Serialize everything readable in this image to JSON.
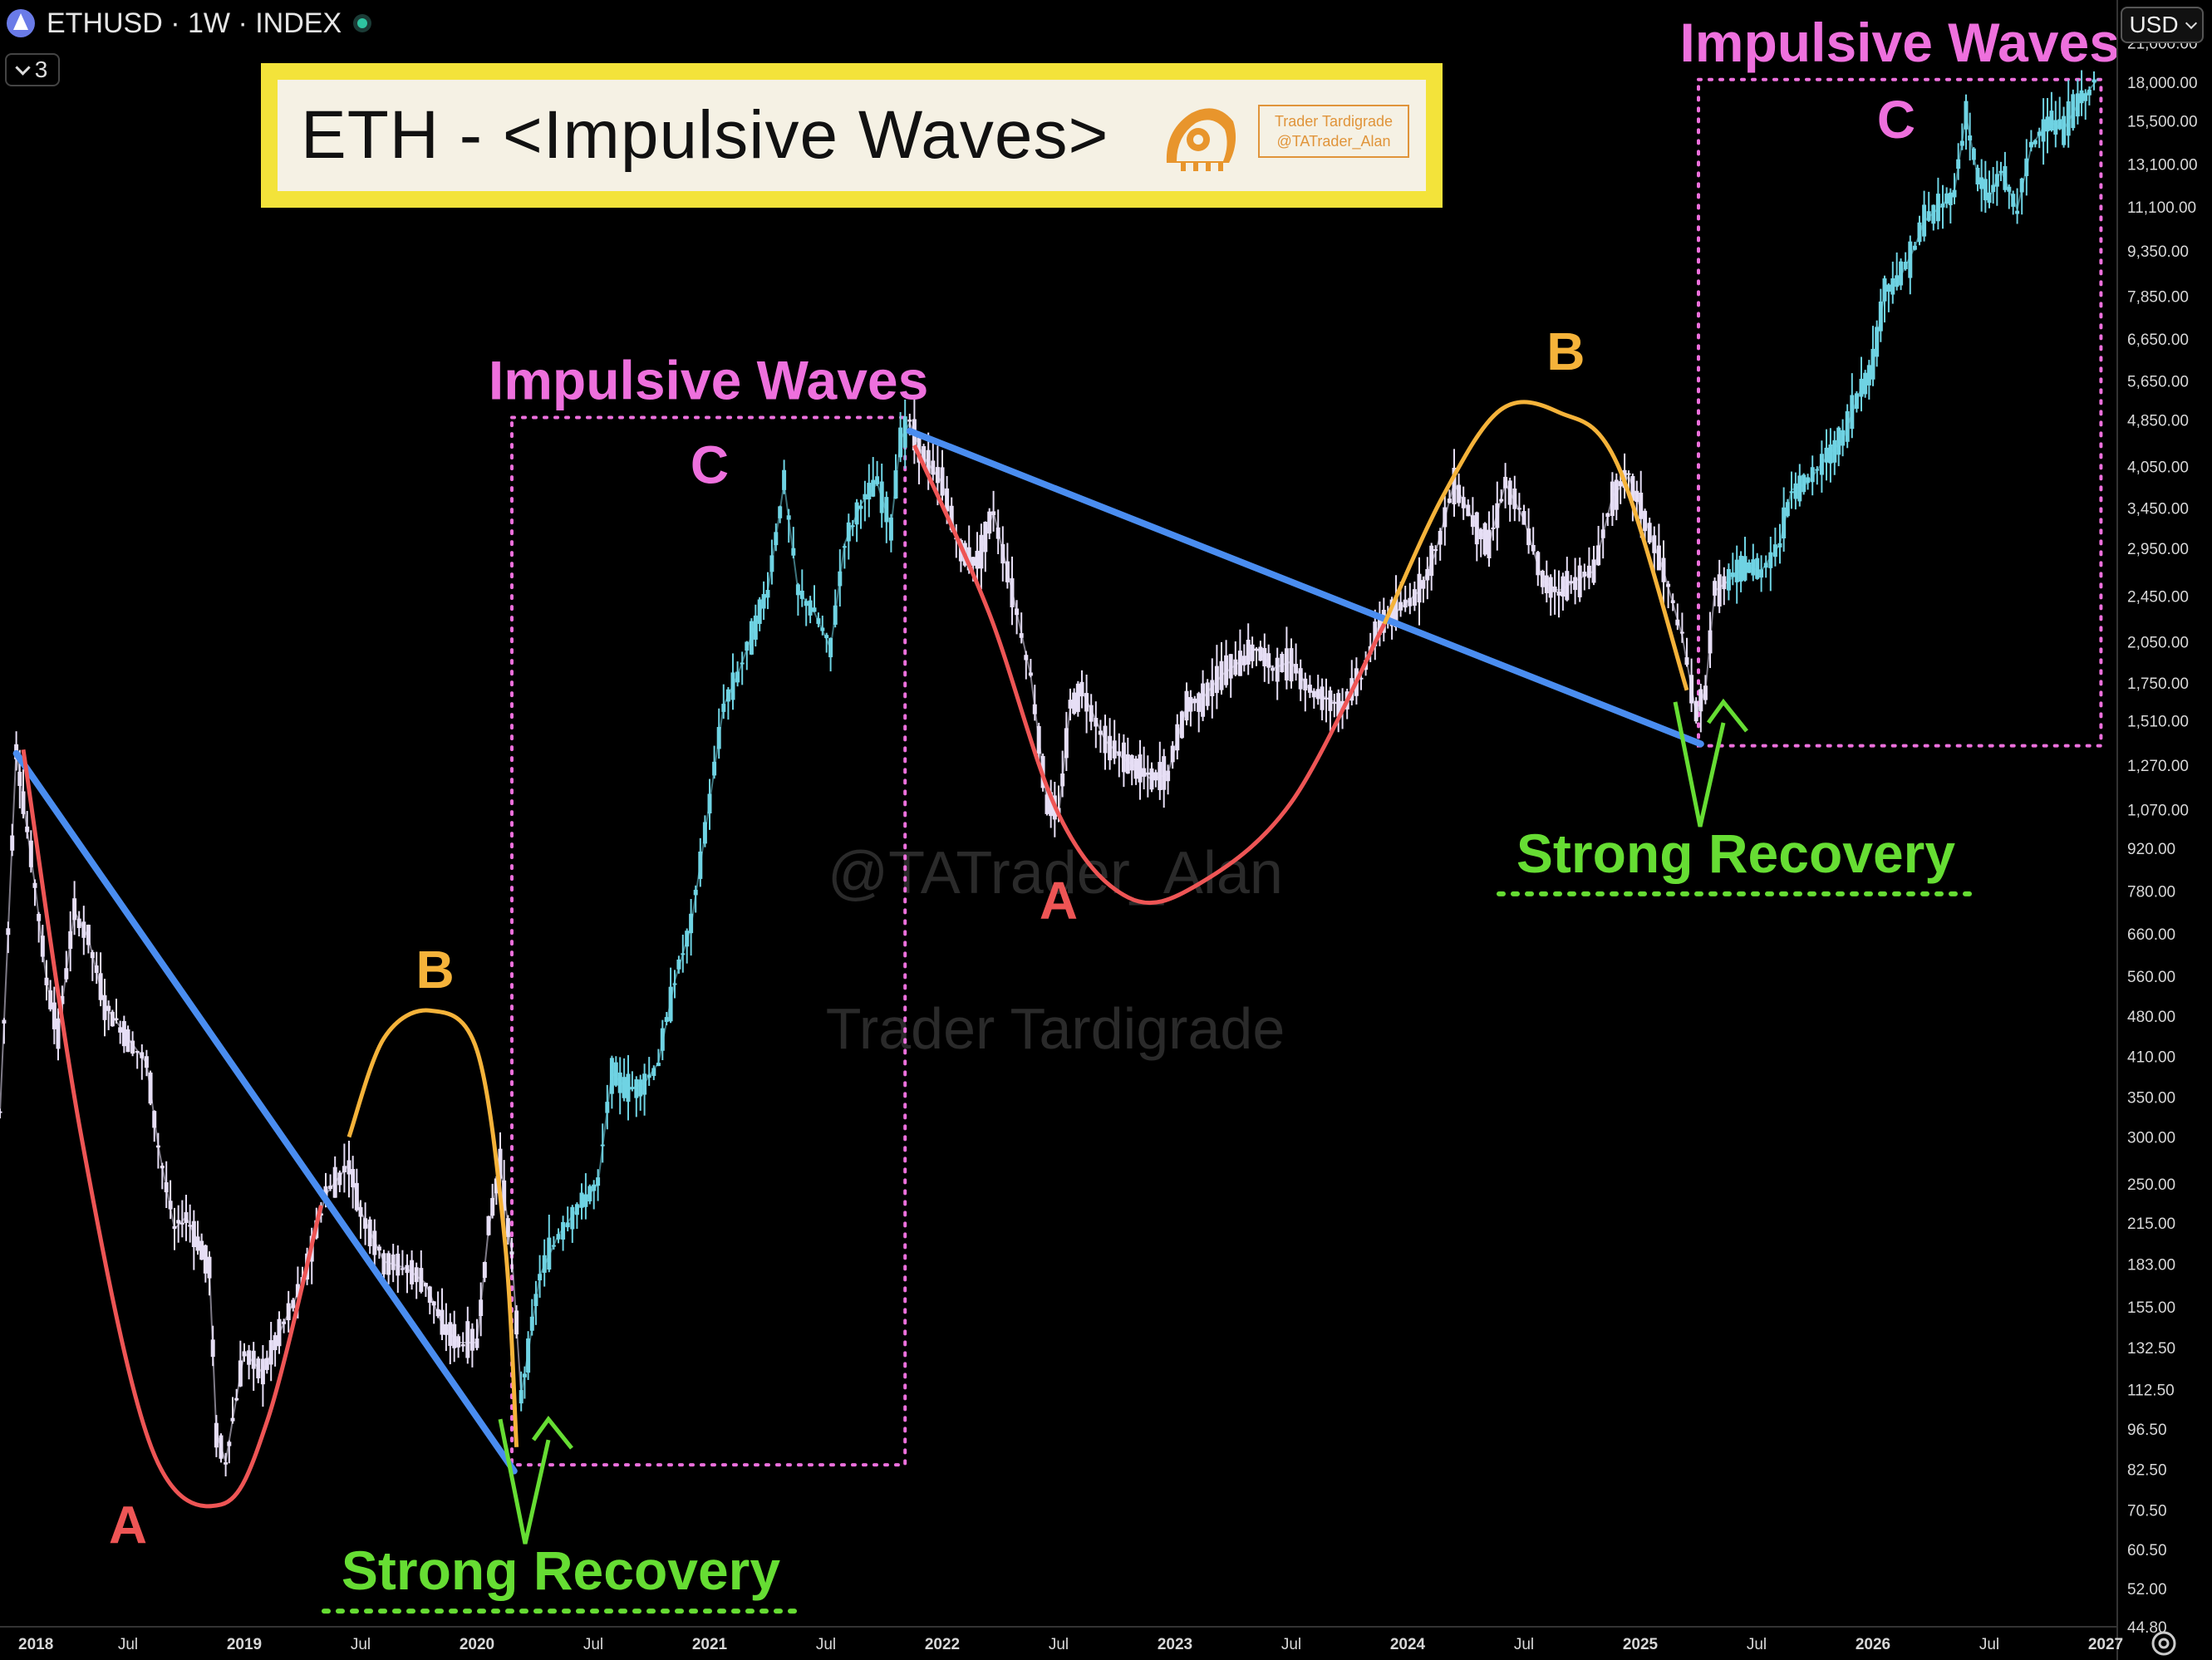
{
  "header": {
    "symbol_line": "ETHUSD · 1W · INDEX",
    "collapse_count": "3",
    "currency": "USD"
  },
  "title_box": {
    "title": "ETH - <Impulsive Waves>",
    "badge_line1": "Trader Tardigrade",
    "badge_line2": "@TATrader_Alan"
  },
  "colors": {
    "background": "#000000",
    "candle_main": "#e6def5",
    "candle_impulse": "#6fd3e3",
    "trendline": "#4a8df0",
    "wave_a": "#ee5555",
    "wave_b": "#f5b33a",
    "impulse_label": "#ee70dd",
    "recovery": "#66dd33",
    "box_border": "#f3e33a"
  },
  "icons": [
    "ethereum-icon",
    "status-dot-icon",
    "chevron-down-icon",
    "settings-icon"
  ],
  "chart_data": {
    "type": "line",
    "title": "ETH - <Impulsive Waves>",
    "xlabel": "",
    "ylabel": "",
    "y_scale": "log",
    "x_ticks": [
      "2018",
      "Jul",
      "2019",
      "Jul",
      "2020",
      "Jul",
      "2021",
      "Jul",
      "2022",
      "Jul",
      "2023",
      "Jul",
      "2024",
      "Jul",
      "2025",
      "Jul",
      "2026",
      "Jul",
      "2027"
    ],
    "y_ticks": [
      21000,
      18000,
      15500,
      13100,
      11100,
      9350,
      7850,
      6650,
      5650,
      4850,
      4050,
      3450,
      2950,
      2450,
      2050,
      1750,
      1510,
      1270,
      1070,
      920,
      780,
      660,
      560,
      480,
      410,
      350,
      300,
      250,
      215,
      183,
      155,
      132.5,
      112.5,
      96.5,
      82.5,
      70.5,
      60.5,
      52,
      44.8
    ],
    "y_tick_labels": [
      "21,000.00",
      "18,000.00",
      "15,500.00",
      "13,100.00",
      "11,100.00",
      "9,350.00",
      "7,850.00",
      "6,650.00",
      "5,650.00",
      "4,850.00",
      "4,050.00",
      "3,450.00",
      "2,950.00",
      "2,450.00",
      "2,050.00",
      "1,750.00",
      "1,510.00",
      "1,270.00",
      "1,070.00",
      "920.00",
      "780.00",
      "660.00",
      "560.00",
      "480.00",
      "410.00",
      "350.00",
      "300.00",
      "250.00",
      "215.00",
      "183.00",
      "155.00",
      "132.50",
      "112.50",
      "96.50",
      "82.50",
      "70.50",
      "60.50",
      "52.00",
      "44.80"
    ],
    "ylim": [
      44.8,
      24000
    ],
    "xlim": [
      2017.95,
      2027.05
    ],
    "series": [
      {
        "name": "",
        "style": "price",
        "points": [
          [
            2017.95,
            330
          ],
          [
            2018.02,
            1350
          ],
          [
            2018.05,
            1100
          ],
          [
            2018.1,
            800
          ],
          [
            2018.15,
            550
          ],
          [
            2018.2,
            450
          ],
          [
            2018.27,
            720
          ],
          [
            2018.33,
            650
          ],
          [
            2018.4,
            500
          ],
          [
            2018.45,
            470
          ],
          [
            2018.5,
            440
          ],
          [
            2018.58,
            400
          ],
          [
            2018.63,
            290
          ],
          [
            2018.7,
            210
          ],
          [
            2018.75,
            220
          ],
          [
            2018.8,
            200
          ],
          [
            2018.85,
            180
          ],
          [
            2018.88,
            95
          ],
          [
            2018.92,
            85
          ],
          [
            2018.95,
            100
          ],
          [
            2019.0,
            130
          ],
          [
            2019.08,
            120
          ],
          [
            2019.15,
            140
          ],
          [
            2019.25,
            170
          ],
          [
            2019.35,
            240
          ],
          [
            2019.45,
            270
          ],
          [
            2019.5,
            225
          ],
          [
            2019.6,
            185
          ],
          [
            2019.7,
            180
          ],
          [
            2019.78,
            170
          ],
          [
            2019.85,
            145
          ],
          [
            2019.92,
            135
          ],
          [
            2020.0,
            135
          ],
          [
            2020.05,
            210
          ],
          [
            2020.1,
            270
          ],
          [
            2020.15,
            190
          ],
          [
            2020.19,
            110
          ]
        ]
      },
      {
        "name": "",
        "style": "impulse",
        "points": [
          [
            2020.19,
            110
          ],
          [
            2020.22,
            130
          ],
          [
            2020.27,
            175
          ],
          [
            2020.35,
            205
          ],
          [
            2020.45,
            232
          ],
          [
            2020.52,
            250
          ],
          [
            2020.58,
            385
          ],
          [
            2020.65,
            360
          ],
          [
            2020.72,
            370
          ],
          [
            2020.78,
            400
          ],
          [
            2020.85,
            550
          ],
          [
            2020.92,
            680
          ],
          [
            2021.0,
            1100
          ],
          [
            2021.06,
            1600
          ],
          [
            2021.12,
            1800
          ],
          [
            2021.18,
            2100
          ],
          [
            2021.25,
            2500
          ],
          [
            2021.32,
            3800
          ],
          [
            2021.38,
            2500
          ],
          [
            2021.45,
            2300
          ],
          [
            2021.52,
            2000
          ],
          [
            2021.58,
            3000
          ],
          [
            2021.65,
            3500
          ],
          [
            2021.72,
            3800
          ],
          [
            2021.78,
            3200
          ],
          [
            2021.82,
            4500
          ],
          [
            2021.86,
            4800
          ]
        ]
      },
      {
        "name": "",
        "style": "price",
        "points": [
          [
            2021.86,
            4800
          ],
          [
            2021.92,
            4200
          ],
          [
            2022.0,
            3800
          ],
          [
            2022.08,
            2900
          ],
          [
            2022.15,
            2800
          ],
          [
            2022.22,
            3400
          ],
          [
            2022.3,
            2500
          ],
          [
            2022.38,
            1800
          ],
          [
            2022.45,
            1100
          ],
          [
            2022.5,
            1050
          ],
          [
            2022.55,
            1600
          ],
          [
            2022.6,
            1700
          ],
          [
            2022.7,
            1400
          ],
          [
            2022.78,
            1300
          ],
          [
            2022.85,
            1250
          ],
          [
            2022.9,
            1200
          ],
          [
            2022.97,
            1230
          ],
          [
            2023.05,
            1600
          ],
          [
            2023.12,
            1650
          ],
          [
            2023.2,
            1800
          ],
          [
            2023.28,
            1900
          ],
          [
            2023.35,
            2000
          ],
          [
            2023.42,
            1850
          ],
          [
            2023.5,
            1900
          ],
          [
            2023.58,
            1700
          ],
          [
            2023.65,
            1650
          ],
          [
            2023.72,
            1600
          ],
          [
            2023.8,
            1800
          ],
          [
            2023.88,
            2200
          ],
          [
            2023.95,
            2300
          ],
          [
            2024.05,
            2500
          ],
          [
            2024.12,
            2900
          ],
          [
            2024.2,
            3800
          ],
          [
            2024.28,
            3300
          ],
          [
            2024.35,
            3000
          ],
          [
            2024.42,
            3800
          ],
          [
            2024.5,
            3300
          ],
          [
            2024.58,
            2600
          ],
          [
            2024.65,
            2500
          ],
          [
            2024.72,
            2600
          ],
          [
            2024.8,
            2700
          ],
          [
            2024.88,
            3600
          ],
          [
            2024.95,
            3900
          ],
          [
            2025.02,
            3300
          ],
          [
            2025.1,
            2700
          ],
          [
            2025.18,
            2100
          ],
          [
            2025.24,
            1550
          ],
          [
            2025.28,
            1700
          ],
          [
            2025.32,
            2500
          ],
          [
            2025.38,
            2600
          ]
        ]
      },
      {
        "name": "",
        "style": "impulse",
        "points": [
          [
            2025.38,
            2600
          ],
          [
            2025.45,
            2750
          ],
          [
            2025.52,
            2700
          ],
          [
            2025.6,
            3000
          ],
          [
            2025.65,
            3700
          ],
          [
            2025.72,
            3800
          ],
          [
            2025.8,
            4200
          ],
          [
            2025.87,
            4500
          ],
          [
            2025.95,
            5500
          ],
          [
            2026.0,
            6000
          ],
          [
            2026.05,
            8000
          ],
          [
            2026.12,
            8500
          ],
          [
            2026.18,
            9500
          ],
          [
            2026.22,
            10500
          ],
          [
            2026.3,
            11200
          ],
          [
            2026.35,
            11800
          ],
          [
            2026.4,
            15800
          ],
          [
            2026.45,
            12500
          ],
          [
            2026.5,
            11500
          ],
          [
            2026.55,
            12800
          ],
          [
            2026.62,
            11000
          ],
          [
            2026.68,
            14000
          ],
          [
            2026.75,
            15500
          ],
          [
            2026.82,
            15000
          ],
          [
            2026.88,
            16500
          ],
          [
            2026.93,
            17500
          ],
          [
            2026.97,
            18300
          ]
        ]
      }
    ],
    "trendlines": [
      {
        "from": [
          2018.02,
          1330
        ],
        "to": [
          2020.16,
          82
        ]
      },
      {
        "from": [
          2021.86,
          4650
        ],
        "to": [
          2025.26,
          1380
        ]
      }
    ],
    "wave_curves": [
      {
        "label": "A",
        "kind": "wave_a",
        "points": [
          [
            2018.05,
            1350
          ],
          [
            2018.3,
            300
          ],
          [
            2018.6,
            90
          ],
          [
            2018.9,
            72
          ],
          [
            2019.1,
            100
          ],
          [
            2019.33,
            230
          ]
        ]
      },
      {
        "label": "B",
        "kind": "wave_b",
        "points": [
          [
            2019.45,
            300
          ],
          [
            2019.6,
            440
          ],
          [
            2019.8,
            490
          ],
          [
            2020.0,
            420
          ],
          [
            2020.12,
            200
          ],
          [
            2020.17,
            90
          ]
        ]
      },
      {
        "label": "A",
        "kind": "wave_a",
        "points": [
          [
            2021.88,
            4400
          ],
          [
            2022.2,
            2300
          ],
          [
            2022.5,
            1050
          ],
          [
            2022.8,
            760
          ],
          [
            2023.1,
            800
          ],
          [
            2023.5,
            1100
          ],
          [
            2023.9,
            2200
          ]
        ]
      },
      {
        "label": "B",
        "kind": "wave_b",
        "points": [
          [
            2023.9,
            2200
          ],
          [
            2024.15,
            3600
          ],
          [
            2024.4,
            5050
          ],
          [
            2024.65,
            5000
          ],
          [
            2024.9,
            4100
          ],
          [
            2025.2,
            1700
          ]
        ]
      }
    ],
    "boxes": [
      {
        "label": "Impulsive Waves",
        "sublabel": "C",
        "x0": 2020.15,
        "x1": 2021.84,
        "y0": 84,
        "y1": 4900
      },
      {
        "label": "Impulsive Waves",
        "sublabel": "C",
        "x0": 2025.25,
        "x1": 2026.98,
        "y0": 1370,
        "y1": 18200
      }
    ],
    "annotations": [
      {
        "text": "A",
        "kind": "wave_a",
        "x": 2018.5,
        "y": 62
      },
      {
        "text": "B",
        "kind": "wave_b",
        "x": 2019.82,
        "y": 535
      },
      {
        "text": "C",
        "kind": "impulse",
        "x": 2021.0,
        "y": 3800
      },
      {
        "text": "A",
        "kind": "wave_a",
        "x": 2022.5,
        "y": 700
      },
      {
        "text": "B",
        "kind": "wave_b",
        "x": 2024.68,
        "y": 5900
      },
      {
        "text": "C",
        "kind": "impulse",
        "x": 2026.1,
        "y": 14500
      }
    ],
    "recovery": [
      {
        "text": "Strong Recovery",
        "x": 2020.2,
        "y": 84
      },
      {
        "text": "Strong Recovery",
        "x": 2025.25,
        "y": 1360
      }
    ],
    "watermarks": [
      "@TATrader_Alan",
      "Trader Tardigrade"
    ]
  }
}
